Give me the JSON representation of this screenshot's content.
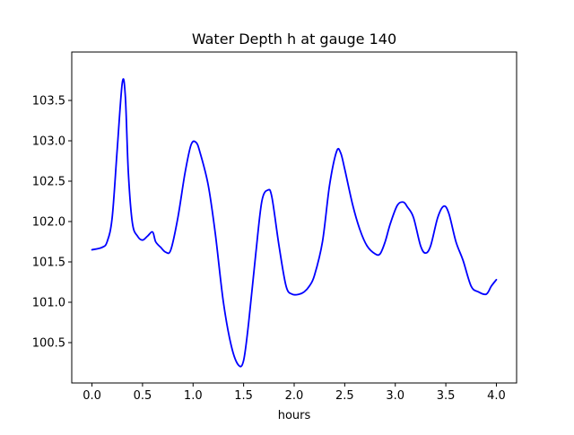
{
  "chart_data": {
    "type": "line",
    "title": "Water Depth h at gauge 140",
    "xlabel": "hours",
    "ylabel": "",
    "xlim": [
      -0.2,
      4.2
    ],
    "ylim": [
      100.0,
      104.1
    ],
    "xticks": [
      0.0,
      0.5,
      1.0,
      1.5,
      2.0,
      2.5,
      3.0,
      3.5,
      4.0
    ],
    "xtick_labels": [
      "0.0",
      "0.5",
      "1.0",
      "1.5",
      "2.0",
      "2.5",
      "3.0",
      "3.5",
      "4.0"
    ],
    "yticks": [
      100.5,
      101.0,
      101.5,
      102.0,
      102.5,
      103.0,
      103.5
    ],
    "ytick_labels": [
      "100.5",
      "101.0",
      "101.5",
      "102.0",
      "102.5",
      "103.0",
      "103.5"
    ],
    "grid": false,
    "series": [
      {
        "color": "#0000ff",
        "x": [
          0.0,
          0.1,
          0.15,
          0.2,
          0.25,
          0.3,
          0.33,
          0.36,
          0.4,
          0.45,
          0.5,
          0.55,
          0.6,
          0.63,
          0.68,
          0.73,
          0.78,
          0.85,
          0.92,
          0.98,
          1.03,
          1.07,
          1.15,
          1.22,
          1.3,
          1.38,
          1.45,
          1.5,
          1.55,
          1.62,
          1.68,
          1.74,
          1.78,
          1.85,
          1.92,
          1.98,
          2.05,
          2.1,
          2.15,
          2.2,
          2.28,
          2.35,
          2.42,
          2.46,
          2.5,
          2.58,
          2.65,
          2.72,
          2.8,
          2.85,
          2.9,
          2.95,
          3.02,
          3.08,
          3.12,
          3.18,
          3.25,
          3.3,
          3.35,
          3.42,
          3.48,
          3.53,
          3.6,
          3.67,
          3.75,
          3.82,
          3.9,
          3.95,
          4.0
        ],
        "y": [
          101.65,
          101.68,
          101.75,
          102.05,
          102.9,
          103.72,
          103.55,
          102.6,
          101.98,
          101.82,
          101.77,
          101.82,
          101.87,
          101.75,
          101.68,
          101.62,
          101.65,
          102.05,
          102.6,
          102.95,
          102.98,
          102.85,
          102.45,
          101.85,
          101.0,
          100.45,
          100.22,
          100.28,
          100.75,
          101.6,
          102.25,
          102.39,
          102.3,
          101.7,
          101.2,
          101.1,
          101.1,
          101.13,
          101.2,
          101.33,
          101.75,
          102.45,
          102.87,
          102.85,
          102.65,
          102.2,
          101.9,
          101.7,
          101.6,
          101.6,
          101.75,
          101.97,
          102.2,
          102.24,
          102.18,
          102.05,
          101.7,
          101.61,
          101.7,
          102.05,
          102.19,
          102.1,
          101.75,
          101.52,
          101.2,
          101.13,
          101.1,
          101.2,
          101.28
        ]
      }
    ]
  }
}
